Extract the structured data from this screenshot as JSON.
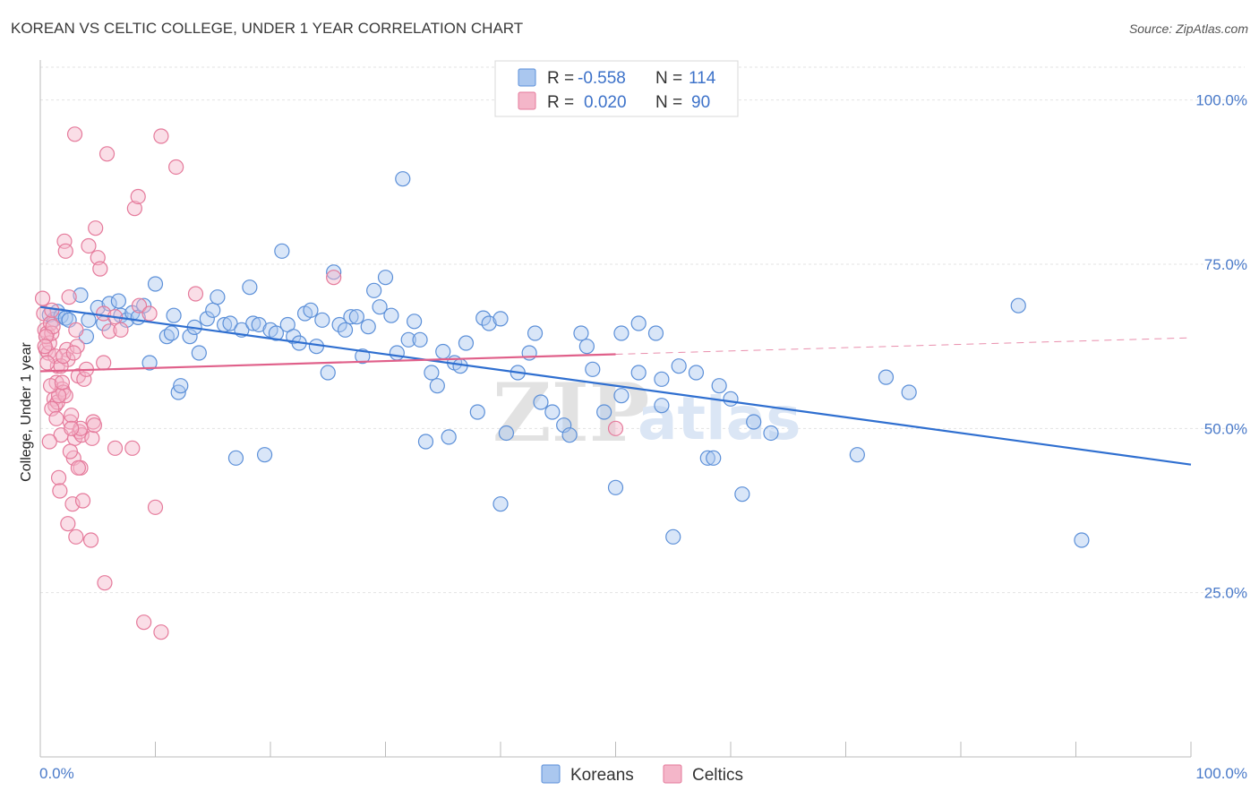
{
  "header": {
    "title": "KOREAN VS CELTIC COLLEGE, UNDER 1 YEAR CORRELATION CHART",
    "source": "Source: ZipAtlas.com"
  },
  "watermark": {
    "zip": "ZIP",
    "atlas": "atlas"
  },
  "colors": {
    "koreans": "#5b8fd8",
    "koreans_fill": "#aac7ef",
    "koreans_line": "#2f6fd0",
    "celtics": "#e57a9b",
    "celtics_fill": "#f4b6c9",
    "celtics_line": "#e0608a",
    "grid": "#e3e3e3"
  },
  "stats": {
    "koreans": {
      "r_label": "R =",
      "r": "-0.558",
      "n_label": "N =",
      "n": "114"
    },
    "celtics": {
      "r_label": "R =",
      "r": "0.020",
      "n_label": "N =",
      "n": "90"
    }
  },
  "chart_data": {
    "type": "scatter",
    "title": "KOREAN VS CELTIC COLLEGE, UNDER 1 YEAR CORRELATION CHART",
    "xlabel": "",
    "ylabel": "College, Under 1 year",
    "xlim": [
      0,
      100
    ],
    "ylim": [
      0,
      105
    ],
    "x_tick_labels": [
      "0.0%",
      "100.0%"
    ],
    "y_ticks": [
      25,
      50,
      75,
      100
    ],
    "y_tick_labels": [
      "25.0%",
      "50.0%",
      "75.0%",
      "100.0%"
    ],
    "grid": true,
    "legend_position": "bottom",
    "series": [
      {
        "name": "Koreans",
        "trend": {
          "x": [
            0,
            100
          ],
          "y": [
            68.5,
            44.5
          ],
          "dashed_after": null
        },
        "points": [
          [
            0.8,
            67.3
          ],
          [
            1.2,
            66.6
          ],
          [
            1.5,
            67.8
          ],
          [
            1.8,
            67.1
          ],
          [
            2.2,
            66.8
          ],
          [
            2.5,
            66.5
          ],
          [
            3.5,
            70.3
          ],
          [
            4,
            64
          ],
          [
            4.2,
            66.5
          ],
          [
            5,
            68.4
          ],
          [
            5.5,
            66
          ],
          [
            6,
            69
          ],
          [
            7,
            67.2
          ],
          [
            6.8,
            69.4
          ],
          [
            7.5,
            66.5
          ],
          [
            8,
            67.6
          ],
          [
            8.5,
            66.9
          ],
          [
            9,
            68.7
          ],
          [
            9.5,
            60
          ],
          [
            10,
            72
          ],
          [
            11,
            64
          ],
          [
            11.4,
            64.5
          ],
          [
            11.6,
            67.2
          ],
          [
            12,
            55.5
          ],
          [
            12.2,
            56.5
          ],
          [
            13,
            64
          ],
          [
            13.4,
            65.4
          ],
          [
            13.8,
            61.5
          ],
          [
            14.5,
            66.7
          ],
          [
            15,
            68
          ],
          [
            15.4,
            70
          ],
          [
            16,
            65.8
          ],
          [
            16.5,
            66
          ],
          [
            17,
            45.5
          ],
          [
            17.5,
            65
          ],
          [
            18.2,
            71.5
          ],
          [
            18.5,
            66
          ],
          [
            19,
            65.8
          ],
          [
            19.5,
            46
          ],
          [
            20,
            65
          ],
          [
            20.5,
            64.5
          ],
          [
            21,
            77
          ],
          [
            21.5,
            65.8
          ],
          [
            22,
            64
          ],
          [
            22.5,
            63
          ],
          [
            23,
            67.5
          ],
          [
            23.5,
            68
          ],
          [
            24,
            62.5
          ],
          [
            24.5,
            66.5
          ],
          [
            25,
            58.5
          ],
          [
            25.5,
            73.8
          ],
          [
            26,
            65.8
          ],
          [
            26.5,
            65
          ],
          [
            27,
            67
          ],
          [
            27.5,
            67
          ],
          [
            28,
            61
          ],
          [
            28.5,
            65.5
          ],
          [
            29,
            71
          ],
          [
            29.5,
            68.5
          ],
          [
            30,
            73
          ],
          [
            30.5,
            67.2
          ],
          [
            31,
            61.5
          ],
          [
            31.5,
            88
          ],
          [
            32,
            63.5
          ],
          [
            32.5,
            66.3
          ],
          [
            33,
            63.5
          ],
          [
            33.5,
            48
          ],
          [
            34,
            58.5
          ],
          [
            34.5,
            56.5
          ],
          [
            35,
            61.7
          ],
          [
            35.5,
            48.7
          ],
          [
            36,
            60
          ],
          [
            36.5,
            59.5
          ],
          [
            37,
            63
          ],
          [
            38,
            52.5
          ],
          [
            38.5,
            66.8
          ],
          [
            39,
            66
          ],
          [
            40,
            66.7
          ],
          [
            40,
            38.5
          ],
          [
            40.5,
            49.3
          ],
          [
            41.5,
            58.5
          ],
          [
            42.5,
            61.5
          ],
          [
            43,
            64.5
          ],
          [
            43.5,
            54
          ],
          [
            44.5,
            52.5
          ],
          [
            45.5,
            50.5
          ],
          [
            46,
            49
          ],
          [
            47,
            64.5
          ],
          [
            47.5,
            62.5
          ],
          [
            48,
            59
          ],
          [
            49,
            52.5
          ],
          [
            50,
            41
          ],
          [
            50.5,
            64.5
          ],
          [
            50.5,
            55
          ],
          [
            52,
            66
          ],
          [
            52,
            58.5
          ],
          [
            53.5,
            64.5
          ],
          [
            54,
            57.5
          ],
          [
            54,
            53.5
          ],
          [
            55,
            33.5
          ],
          [
            55.5,
            59.5
          ],
          [
            57,
            58.5
          ],
          [
            58,
            45.5
          ],
          [
            58.5,
            45.5
          ],
          [
            59,
            56.5
          ],
          [
            60,
            54.5
          ],
          [
            62,
            51
          ],
          [
            61,
            40
          ],
          [
            63.5,
            49.3
          ],
          [
            71,
            46
          ],
          [
            73.5,
            57.8
          ],
          [
            75.5,
            55.5
          ],
          [
            85,
            68.7
          ],
          [
            90.5,
            33
          ]
        ]
      },
      {
        "name": "Celtics",
        "trend": {
          "x": [
            0,
            50
          ],
          "y": [
            58.7,
            61.3
          ],
          "dashed_to": [
            100,
            63.8
          ]
        },
        "points": [
          [
            0.2,
            69.8
          ],
          [
            0.3,
            67.5
          ],
          [
            0.4,
            65
          ],
          [
            0.5,
            62
          ],
          [
            0.6,
            64.5
          ],
          [
            0.7,
            61.5
          ],
          [
            0.8,
            63
          ],
          [
            0.9,
            66
          ],
          [
            1,
            64.5
          ],
          [
            1.1,
            65.5
          ],
          [
            1.2,
            54.5
          ],
          [
            1.3,
            53.5
          ],
          [
            1.4,
            57
          ],
          [
            1.5,
            59.5
          ],
          [
            1.5,
            54
          ],
          [
            1.6,
            42.5
          ],
          [
            1.7,
            40.5
          ],
          [
            1.8,
            49
          ],
          [
            1.9,
            56
          ],
          [
            2,
            55.5
          ],
          [
            2.1,
            78.5
          ],
          [
            2.2,
            77
          ],
          [
            2.3,
            62
          ],
          [
            2.4,
            60.5
          ],
          [
            2.5,
            70
          ],
          [
            2.6,
            51
          ],
          [
            2.7,
            52
          ],
          [
            2.8,
            38.5
          ],
          [
            2.9,
            45.5
          ],
          [
            3,
            48.5
          ],
          [
            3,
            94.8
          ],
          [
            3.1,
            33.5
          ],
          [
            3.2,
            62.5
          ],
          [
            3.3,
            58
          ],
          [
            3.4,
            49.5
          ],
          [
            3.5,
            44
          ],
          [
            3.6,
            49
          ],
          [
            3.7,
            39
          ],
          [
            3.8,
            57.5
          ],
          [
            4,
            59
          ],
          [
            4.2,
            77.8
          ],
          [
            4.4,
            33
          ],
          [
            4.5,
            48.5
          ],
          [
            4.6,
            51
          ],
          [
            4.7,
            50.5
          ],
          [
            4.8,
            80.5
          ],
          [
            5,
            76
          ],
          [
            5.2,
            74.3
          ],
          [
            5.5,
            60
          ],
          [
            5.5,
            67.5
          ],
          [
            5.6,
            26.5
          ],
          [
            5.8,
            91.8
          ],
          [
            6,
            64.8
          ],
          [
            6.5,
            67
          ],
          [
            6.5,
            47
          ],
          [
            7,
            65
          ],
          [
            8,
            47
          ],
          [
            8.2,
            83.5
          ],
          [
            8.5,
            85.3
          ],
          [
            8.6,
            68.7
          ],
          [
            9,
            20.5
          ],
          [
            9.5,
            67.5
          ],
          [
            10,
            38
          ],
          [
            10.5,
            19
          ],
          [
            10.5,
            94.5
          ],
          [
            11.8,
            89.8
          ],
          [
            13.5,
            70.5
          ],
          [
            25.5,
            73
          ],
          [
            50,
            50
          ],
          [
            1,
            68
          ],
          [
            1.3,
            61
          ],
          [
            1.8,
            59.5
          ],
          [
            2.2,
            55
          ],
          [
            2.6,
            46.5
          ],
          [
            3.1,
            65
          ],
          [
            3.5,
            50
          ],
          [
            0.5,
            64
          ],
          [
            0.8,
            48
          ],
          [
            1.6,
            55
          ],
          [
            2.4,
            35.5
          ],
          [
            1,
            53
          ],
          [
            2,
            61
          ],
          [
            2.7,
            50
          ],
          [
            3.3,
            44
          ],
          [
            0.4,
            62.5
          ],
          [
            0.6,
            60
          ],
          [
            1.4,
            51.5
          ],
          [
            2.9,
            61.5
          ],
          [
            0.9,
            56.5
          ],
          [
            1.9,
            57
          ]
        ]
      }
    ]
  }
}
